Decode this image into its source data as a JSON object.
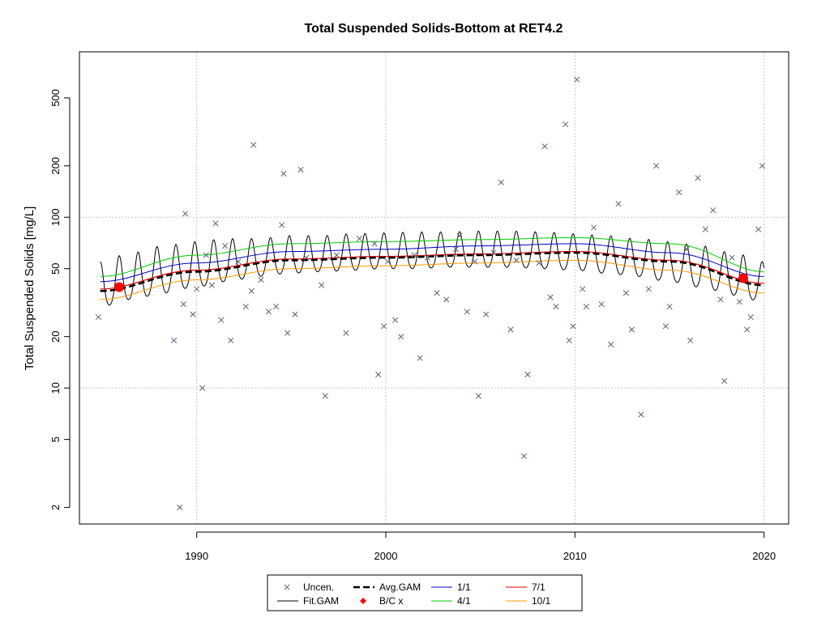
{
  "chart_data": {
    "type": "scatter",
    "title": "Total Suspended Solids-Bottom at RET4.2",
    "xlabel": "",
    "ylabel": "Total Suspended Solids [mg/L]",
    "xlim": [
      1983.8,
      2021.3
    ],
    "ylim": [
      1.6,
      930
    ],
    "y_scale": "log",
    "x_ticks": [
      1990,
      2000,
      2010,
      2020
    ],
    "y_ticks": [
      2,
      5,
      10,
      20,
      50,
      100,
      200,
      500
    ],
    "grid_x": [
      1990,
      2000,
      2010,
      2020
    ],
    "grid_y": [
      10,
      100
    ],
    "legend_position": "bottom",
    "legend": [
      {
        "key": "uncen",
        "label": "Uncen."
      },
      {
        "key": "avg",
        "label": "Avg.GAM"
      },
      {
        "key": "s11",
        "label": "1/1"
      },
      {
        "key": "s71",
        "label": "7/1"
      },
      {
        "key": "fit",
        "label": "Fit.GAM"
      },
      {
        "key": "bc",
        "label": "B/C x"
      },
      {
        "key": "s41",
        "label": "4/1"
      },
      {
        "key": "s101",
        "label": "10/1"
      }
    ],
    "colors": {
      "uncen": "#5a6378",
      "fit": "#000000",
      "avg": "#000000",
      "bc": "#ff0000",
      "s11": "#0000cc",
      "s41": "#00cc00",
      "s71": "#dd0000",
      "s101": "#ff9900"
    },
    "x": [
      1984.8,
      1988.8,
      1989.1,
      1989.3,
      1989.4,
      1989.8,
      1990.0,
      1990.3,
      1990.5,
      1990.8,
      1991.0,
      1991.3,
      1991.5,
      1991.8,
      1992.2,
      1992.6,
      1992.9,
      1993.0,
      1993.4,
      1993.8,
      1994.2,
      1994.5,
      1994.6,
      1994.8,
      1995.2,
      1995.5,
      1995.8,
      1996.6,
      1996.8,
      1997.4,
      1997.9,
      1998.6,
      1999.4,
      1999.6,
      1999.9,
      2000.1,
      2000.5,
      2000.8,
      2001.5,
      2001.8,
      2002.2,
      2002.7,
      2003.2,
      2003.7,
      2003.9,
      2004.3,
      2004.7,
      2004.9,
      2005.3,
      2005.7,
      2006.1,
      2006.6,
      2006.9,
      2007.3,
      2007.5,
      2008.1,
      2008.4,
      2008.7,
      2009.0,
      2009.5,
      2009.7,
      2009.9,
      2010.1,
      2010.4,
      2010.6,
      2011.0,
      2011.4,
      2011.9,
      2012.3,
      2012.7,
      2013.0,
      2013.5,
      2013.9,
      2014.3,
      2014.8,
      2015.0,
      2015.5,
      2015.9,
      2016.1,
      2016.5,
      2016.9,
      2017.3,
      2017.7,
      2017.9,
      2018.3,
      2018.7,
      2019.1,
      2019.3,
      2019.7,
      2019.9
    ],
    "values": [
      26,
      19,
      2,
      31,
      105,
      27,
      38,
      10,
      60,
      40,
      92,
      25,
      68,
      19,
      55,
      30,
      37,
      265,
      43,
      28,
      30,
      90,
      180,
      21,
      27,
      190,
      58,
      40,
      9,
      60,
      21,
      75,
      70,
      12,
      23,
      55,
      25,
      20,
      60,
      15,
      58,
      36,
      33,
      65,
      78,
      28,
      55,
      9,
      27,
      62,
      160,
      22,
      56,
      4,
      12,
      54,
      260,
      34,
      30,
      350,
      19,
      23,
      640,
      38,
      30,
      87,
      31,
      18,
      120,
      36,
      22,
      7,
      38,
      200,
      23,
      30,
      140,
      65,
      19,
      170,
      85,
      110,
      33,
      11,
      58,
      32,
      22,
      26,
      85,
      200
    ],
    "series": [
      {
        "name": "Fit.GAM",
        "key": "fit",
        "x": [
          1984.9,
          2020.0
        ],
        "values": [
          34,
          37
        ],
        "seasonal_high": [
          55,
          62,
          68,
          72,
          75,
          75,
          78,
          78,
          80,
          81,
          82,
          82,
          83,
          83,
          82,
          80,
          78,
          75,
          72,
          68,
          62,
          55
        ],
        "seasonal_low": [
          30,
          33,
          36,
          39,
          42,
          45,
          47,
          48,
          49,
          50,
          50,
          51,
          51,
          51,
          50,
          49,
          47,
          45,
          42,
          39,
          35,
          32
        ]
      },
      {
        "name": "Avg.GAM",
        "key": "avg",
        "x": [
          1984.9,
          1990,
          1995,
          2000,
          2005,
          2010,
          2015,
          2020
        ],
        "values": [
          37,
          48,
          56,
          58,
          60,
          62,
          55,
          40
        ]
      },
      {
        "name": "1/1",
        "key": "s11",
        "x": [
          1984.9,
          1990,
          1995,
          2000,
          2005,
          2010,
          2015,
          2020
        ],
        "values": [
          42,
          54,
          63,
          65,
          68,
          70,
          62,
          45
        ]
      },
      {
        "name": "4/1",
        "key": "s41",
        "x": [
          1984.9,
          1990,
          1995,
          2000,
          2005,
          2010,
          2015,
          2020
        ],
        "values": [
          45,
          60,
          70,
          72,
          74,
          76,
          70,
          48
        ]
      },
      {
        "name": "7/1",
        "key": "s71",
        "x": [
          1984.9,
          1990,
          1995,
          2000,
          2005,
          2010,
          2015,
          2020
        ],
        "values": [
          38,
          49,
          57,
          59,
          61,
          63,
          56,
          41
        ]
      },
      {
        "name": "10/1",
        "key": "s101",
        "x": [
          1984.9,
          1990,
          1995,
          2000,
          2005,
          2010,
          2015,
          2020
        ],
        "values": [
          33,
          43,
          50,
          52,
          54,
          56,
          49,
          36
        ]
      }
    ],
    "bc_points": [
      {
        "x": 1985.9,
        "y": 39
      },
      {
        "x": 2018.9,
        "y": 44
      }
    ]
  }
}
